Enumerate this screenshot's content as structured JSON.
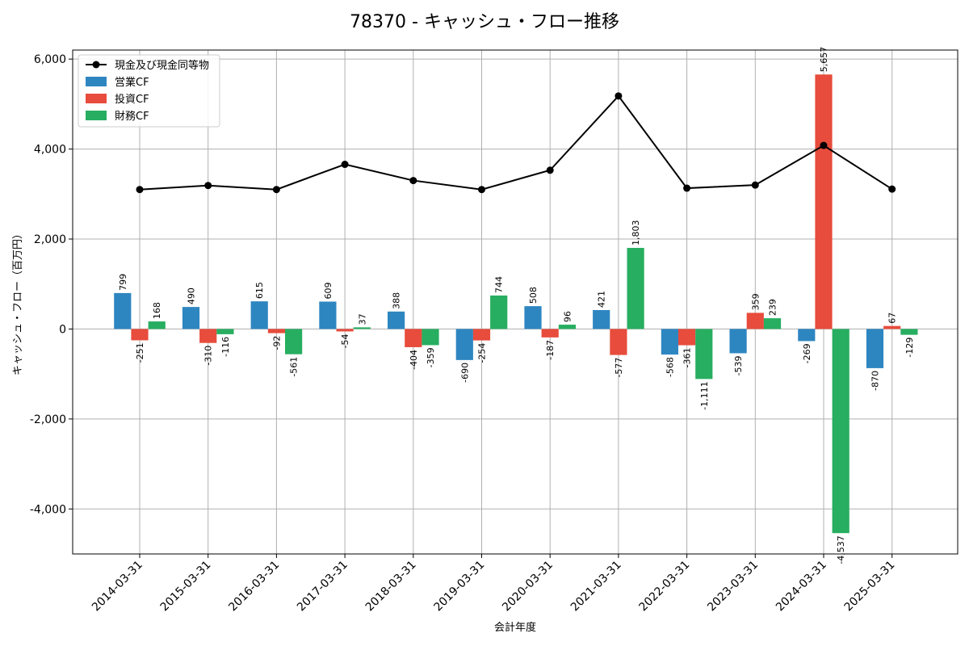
{
  "chart_data": {
    "type": "bar",
    "title": "78370 - キャッシュ・フロー推移",
    "xlabel": "会計年度",
    "ylabel": "キャッシュ・フロー（百万円）",
    "ylim": [
      -5000,
      6200
    ],
    "yticks": [
      -4000,
      -2000,
      0,
      2000,
      4000,
      6000
    ],
    "ytick_labels": [
      "-4,000",
      "-2,000",
      "0",
      "2,000",
      "4,000",
      "6,000"
    ],
    "grid": true,
    "legend_position": "top-left",
    "categories": [
      "2014-03-31",
      "2015-03-31",
      "2016-03-31",
      "2017-03-31",
      "2018-03-31",
      "2019-03-31",
      "2020-03-31",
      "2021-03-31",
      "2022-03-31",
      "2023-03-31",
      "2024-03-31",
      "2025-03-31"
    ],
    "series": [
      {
        "name": "営業CF",
        "kind": "bar",
        "color": "#2e86c1",
        "values": [
          799,
          490,
          615,
          609,
          388,
          -690,
          508,
          421,
          -568,
          -539,
          -269,
          -870
        ],
        "labels": [
          "799",
          "490",
          "615",
          "609",
          "388",
          "-690",
          "508",
          "421",
          "-568",
          "-539",
          "-269",
          "-870"
        ]
      },
      {
        "name": "投資CF",
        "kind": "bar",
        "color": "#e74c3c",
        "values": [
          -251,
          -310,
          -92,
          -54,
          -404,
          -254,
          -187,
          -577,
          -361,
          359,
          5657,
          67
        ],
        "labels": [
          "-251",
          "-310",
          "-92",
          "-54",
          "-404",
          "-254",
          "-187",
          "-577",
          "-361",
          "359",
          "5,657",
          "67"
        ]
      },
      {
        "name": "財務CF",
        "kind": "bar",
        "color": "#27ae60",
        "values": [
          168,
          -116,
          -561,
          37,
          -359,
          744,
          96,
          1803,
          -1111,
          239,
          -4537,
          -129
        ],
        "labels": [
          "168",
          "-116",
          "-561",
          "37",
          "-359",
          "744",
          "96",
          "1,803",
          "-1,111",
          "239",
          "-4,537",
          "-129"
        ]
      },
      {
        "name": "現金及び現金同等物",
        "kind": "line",
        "color": "#000000",
        "values": [
          3100,
          3190,
          3100,
          3660,
          3300,
          3100,
          3530,
          5180,
          3130,
          3200,
          4080,
          3110
        ]
      }
    ]
  }
}
